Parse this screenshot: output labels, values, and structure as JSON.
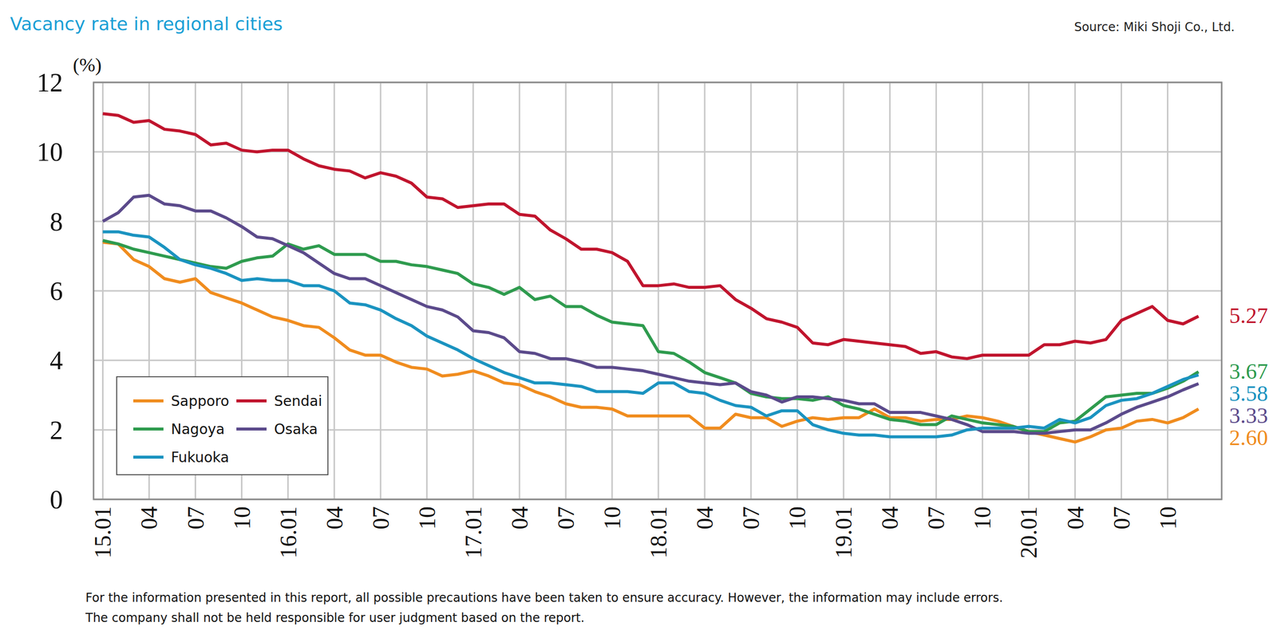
{
  "chart_data": {
    "type": "line",
    "title": "Vacancy rate in regional cities",
    "source": "Source: Miki Shoji Co., Ltd.",
    "y_label": "(%)",
    "notes": [
      "For the information presented in this report, all possible precautions have been taken to ensure accuracy. However, the information may include errors.",
      "The company shall not be held responsible for user judgment based on the report."
    ],
    "x": [
      "15.01",
      null,
      null,
      "04",
      null,
      null,
      "07",
      null,
      null,
      "10",
      null,
      null,
      "16.01",
      null,
      null,
      "04",
      null,
      null,
      "07",
      null,
      null,
      "10",
      null,
      null,
      "17.01",
      null,
      null,
      "04",
      null,
      null,
      "07",
      null,
      null,
      "10",
      null,
      null,
      "18.01",
      null,
      null,
      "04",
      null,
      null,
      "07",
      null,
      null,
      "10",
      null,
      null,
      "19.01",
      null,
      null,
      "04",
      null,
      null,
      "07",
      null,
      null,
      "10",
      null,
      null,
      "20.01",
      null,
      null,
      "04",
      null,
      null,
      "07",
      null,
      null,
      "10",
      null,
      null
    ],
    "ylim": [
      0,
      12
    ],
    "yticks": [
      0,
      2,
      4,
      6,
      8,
      10,
      12
    ],
    "grid": true,
    "legend": "bottom-left",
    "series": [
      {
        "name": "Sapporo",
        "color": "#f08c1e",
        "end_label": "2.60",
        "values": [
          7.4,
          7.35,
          6.9,
          6.7,
          6.35,
          6.25,
          6.35,
          5.95,
          5.8,
          5.65,
          5.45,
          5.25,
          5.15,
          5.0,
          4.95,
          4.65,
          4.3,
          4.15,
          4.15,
          3.95,
          3.8,
          3.75,
          3.55,
          3.6,
          3.7,
          3.55,
          3.35,
          3.3,
          3.1,
          2.95,
          2.75,
          2.65,
          2.65,
          2.6,
          2.4,
          2.4,
          2.4,
          2.4,
          2.4,
          2.05,
          2.05,
          2.45,
          2.35,
          2.35,
          2.1,
          2.25,
          2.35,
          2.3,
          2.35,
          2.35,
          2.6,
          2.35,
          2.35,
          2.25,
          2.3,
          2.3,
          2.4,
          2.35,
          2.25,
          2.1,
          1.95,
          1.85,
          1.75,
          1.65,
          1.8,
          2.0,
          2.05,
          2.25,
          2.3,
          2.2,
          2.35,
          2.6
        ]
      },
      {
        "name": "Sendai",
        "color": "#c0142d",
        "end_label": "5.27",
        "values": [
          11.1,
          11.05,
          10.85,
          10.9,
          10.65,
          10.6,
          10.5,
          10.2,
          10.25,
          10.05,
          10.0,
          10.05,
          10.05,
          9.8,
          9.6,
          9.5,
          9.45,
          9.25,
          9.4,
          9.3,
          9.1,
          8.7,
          8.65,
          8.4,
          8.45,
          8.5,
          8.5,
          8.2,
          8.15,
          7.75,
          7.5,
          7.2,
          7.2,
          7.1,
          6.85,
          6.15,
          6.15,
          6.2,
          6.1,
          6.1,
          6.15,
          5.75,
          5.5,
          5.2,
          5.1,
          4.95,
          4.5,
          4.45,
          4.6,
          4.55,
          4.5,
          4.45,
          4.4,
          4.2,
          4.25,
          4.1,
          4.05,
          4.15,
          4.15,
          4.15,
          4.15,
          4.45,
          4.45,
          4.55,
          4.5,
          4.6,
          5.15,
          5.35,
          5.55,
          5.15,
          5.05,
          5.27
        ]
      },
      {
        "name": "Nagoya",
        "color": "#2e9b4e",
        "end_label": "3.67",
        "values": [
          7.45,
          7.35,
          7.2,
          7.1,
          7.0,
          6.9,
          6.8,
          6.7,
          6.65,
          6.85,
          6.95,
          7.0,
          7.35,
          7.2,
          7.3,
          7.05,
          7.05,
          7.05,
          6.85,
          6.85,
          6.75,
          6.7,
          6.6,
          6.5,
          6.2,
          6.1,
          5.9,
          6.1,
          5.75,
          5.85,
          5.55,
          5.55,
          5.3,
          5.1,
          5.05,
          5.0,
          4.25,
          4.2,
          3.95,
          3.65,
          3.5,
          3.35,
          3.05,
          2.95,
          2.9,
          2.9,
          2.85,
          2.95,
          2.7,
          2.6,
          2.45,
          2.3,
          2.25,
          2.15,
          2.15,
          2.4,
          2.3,
          2.2,
          2.15,
          2.1,
          1.95,
          1.95,
          2.2,
          2.25,
          2.6,
          2.95,
          3.0,
          3.05,
          3.05,
          3.2,
          3.4,
          3.67
        ]
      },
      {
        "name": "Osaka",
        "color": "#5b4a8b",
        "end_label": "3.33",
        "values": [
          8.0,
          8.25,
          8.7,
          8.75,
          8.5,
          8.45,
          8.3,
          8.3,
          8.1,
          7.85,
          7.55,
          7.5,
          7.3,
          7.1,
          6.8,
          6.5,
          6.35,
          6.35,
          6.15,
          5.95,
          5.75,
          5.55,
          5.45,
          5.25,
          4.85,
          4.8,
          4.65,
          4.25,
          4.2,
          4.05,
          4.05,
          3.95,
          3.8,
          3.8,
          3.75,
          3.7,
          3.6,
          3.5,
          3.4,
          3.35,
          3.3,
          3.35,
          3.1,
          3.0,
          2.8,
          2.95,
          2.95,
          2.9,
          2.85,
          2.75,
          2.75,
          2.5,
          2.5,
          2.5,
          2.4,
          2.3,
          2.15,
          1.95,
          1.95,
          1.95,
          1.9,
          1.9,
          1.95,
          2.0,
          2.0,
          2.2,
          2.45,
          2.65,
          2.8,
          2.95,
          3.15,
          3.33
        ]
      },
      {
        "name": "Fukuoka",
        "color": "#1a93c0",
        "end_label": "3.58",
        "values": [
          7.7,
          7.7,
          7.6,
          7.55,
          7.25,
          6.9,
          6.75,
          6.65,
          6.5,
          6.3,
          6.35,
          6.3,
          6.3,
          6.15,
          6.15,
          6.0,
          5.65,
          5.6,
          5.45,
          5.2,
          5.0,
          4.7,
          4.5,
          4.3,
          4.05,
          3.85,
          3.65,
          3.5,
          3.35,
          3.35,
          3.3,
          3.25,
          3.1,
          3.1,
          3.1,
          3.05,
          3.35,
          3.35,
          3.1,
          3.05,
          2.85,
          2.7,
          2.65,
          2.4,
          2.55,
          2.55,
          2.15,
          2.0,
          1.9,
          1.85,
          1.85,
          1.8,
          1.8,
          1.8,
          1.8,
          1.85,
          2.0,
          2.05,
          2.05,
          2.05,
          2.1,
          2.05,
          2.3,
          2.2,
          2.35,
          2.7,
          2.85,
          2.9,
          3.05,
          3.25,
          3.45,
          3.58
        ]
      }
    ]
  }
}
